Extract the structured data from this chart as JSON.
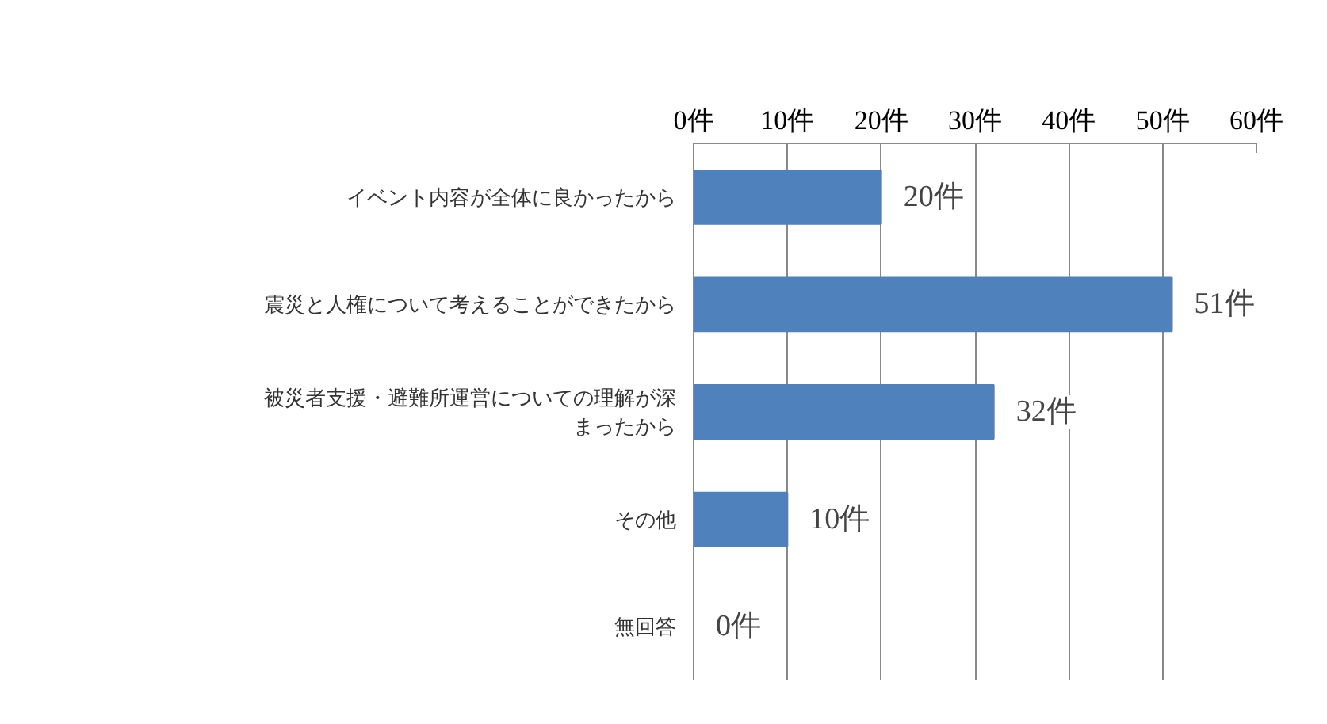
{
  "chart_data": {
    "type": "bar",
    "orientation": "horizontal",
    "categories": [
      "イベント内容が全体に良かったから",
      "震災と人権について考えることができたから",
      "被災者支援・避難所運営についての理解が深まったから",
      "その他",
      "無回答"
    ],
    "values": [
      20,
      51,
      32,
      10,
      0
    ],
    "value_labels": [
      "20件",
      "51件",
      "32件",
      "10件",
      "0件"
    ],
    "color": "#4f81bd",
    "xlim": [
      0,
      60
    ],
    "xticks": [
      {
        "value": 0,
        "label": "0件"
      },
      {
        "value": 10,
        "label": "10件"
      },
      {
        "value": 20,
        "label": "20件"
      },
      {
        "value": 30,
        "label": "30件"
      },
      {
        "value": 40,
        "label": "40件"
      },
      {
        "value": 50,
        "label": "50件"
      },
      {
        "value": 60,
        "label": "60件"
      }
    ],
    "grid": "x"
  }
}
